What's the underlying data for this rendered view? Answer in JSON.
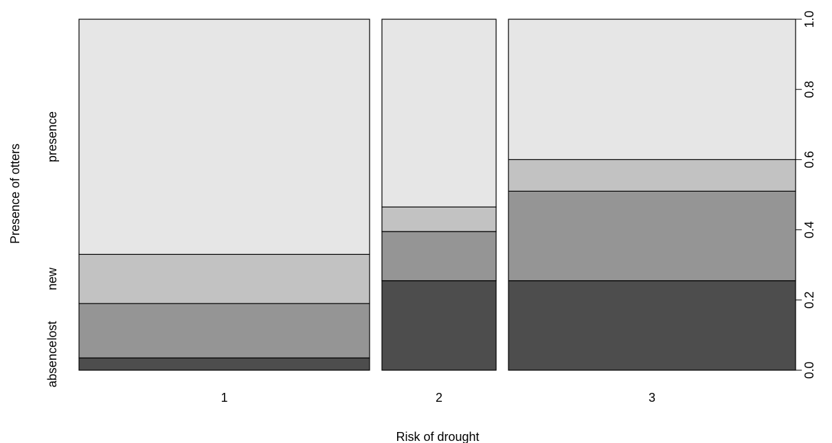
{
  "chart_data": {
    "type": "spineplot",
    "title": "",
    "xlabel": "Risk of drought",
    "ylabel": "Presence of otters",
    "categories": [
      "1",
      "2",
      "3"
    ],
    "category_widths": [
      0.42,
      0.165,
      0.415
    ],
    "series": [
      {
        "name": "absence",
        "values": [
          0.035,
          0.255,
          0.255
        ],
        "color": "#4d4d4d"
      },
      {
        "name": "lost",
        "values": [
          0.155,
          0.14,
          0.255
        ],
        "color": "#959595"
      },
      {
        "name": "new",
        "values": [
          0.14,
          0.07,
          0.09
        ],
        "color": "#c2c2c2"
      },
      {
        "name": "presence",
        "values": [
          0.67,
          0.535,
          0.4
        ],
        "color": "#e6e6e6"
      }
    ],
    "y_right_ticks": [
      0.0,
      0.2,
      0.4,
      0.6,
      0.8,
      1.0
    ],
    "y_right_tick_labels": [
      "0.0",
      "0.2",
      "0.4",
      "0.6",
      "0.8",
      "1.0"
    ],
    "ylim": [
      0,
      1
    ],
    "grid": false,
    "legend": "none"
  }
}
